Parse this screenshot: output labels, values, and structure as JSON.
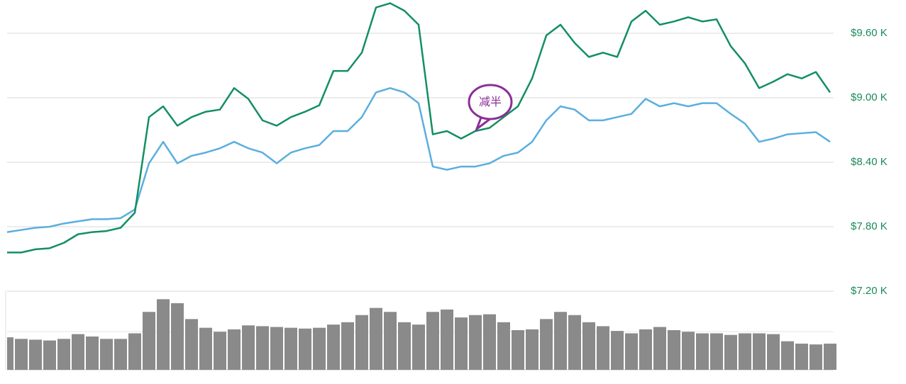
{
  "chart_data": [
    {
      "type": "line",
      "ylim": [
        7200,
        9910
      ],
      "yticks": [
        {
          "value": 7200,
          "label": "$7.20 K"
        },
        {
          "value": 7800,
          "label": "$7.80 K"
        },
        {
          "value": 8400,
          "label": "$8.40 K"
        },
        {
          "value": 9000,
          "label": "$9.00 K"
        },
        {
          "value": 9600,
          "label": "$9.60 K"
        }
      ],
      "grid": true,
      "annotations": [
        "减半"
      ],
      "series": [
        {
          "color": "#138f62",
          "values": [
            7560,
            7560,
            7590,
            7600,
            7650,
            7730,
            7750,
            7760,
            7790,
            7930,
            8820,
            8920,
            8740,
            8820,
            8870,
            8890,
            9090,
            8990,
            8790,
            8740,
            8820,
            8870,
            8930,
            9250,
            9250,
            9420,
            9840,
            9880,
            9810,
            9680,
            8660,
            8690,
            8620,
            8690,
            8720,
            8820,
            8920,
            9180,
            9580,
            9680,
            9510,
            9380,
            9420,
            9380,
            9710,
            9810,
            9680,
            9710,
            9750,
            9710,
            9730,
            9480,
            9320,
            9090,
            9150,
            9220,
            9180,
            9240,
            9050
          ]
        },
        {
          "color": "#5aafdf",
          "values": [
            7750,
            7770,
            7790,
            7800,
            7830,
            7850,
            7870,
            7870,
            7880,
            7960,
            8390,
            8590,
            8390,
            8460,
            8490,
            8530,
            8590,
            8530,
            8490,
            8390,
            8490,
            8530,
            8560,
            8690,
            8690,
            8820,
            9050,
            9090,
            9050,
            8950,
            8360,
            8330,
            8360,
            8360,
            8390,
            8460,
            8490,
            8590,
            8790,
            8920,
            8890,
            8790,
            8790,
            8820,
            8850,
            8990,
            8920,
            8950,
            8920,
            8950,
            8950,
            8850,
            8760,
            8590,
            8620,
            8660,
            8670,
            8680,
            8590
          ]
        }
      ]
    },
    {
      "type": "bar",
      "ylim": [
        0,
        100
      ],
      "color": "#8a8a8a",
      "values": [
        41,
        39,
        38,
        37,
        39,
        45,
        42,
        39,
        39,
        46,
        73,
        89,
        84,
        64,
        53,
        48,
        51,
        56,
        55,
        54,
        53,
        52,
        53,
        57,
        60,
        69,
        78,
        73,
        60,
        57,
        73,
        76,
        66,
        69,
        70,
        60,
        50,
        51,
        64,
        73,
        69,
        60,
        55,
        49,
        46,
        51,
        54,
        50,
        48,
        46,
        46,
        44,
        46,
        46,
        45,
        36,
        33,
        32,
        33
      ]
    }
  ]
}
